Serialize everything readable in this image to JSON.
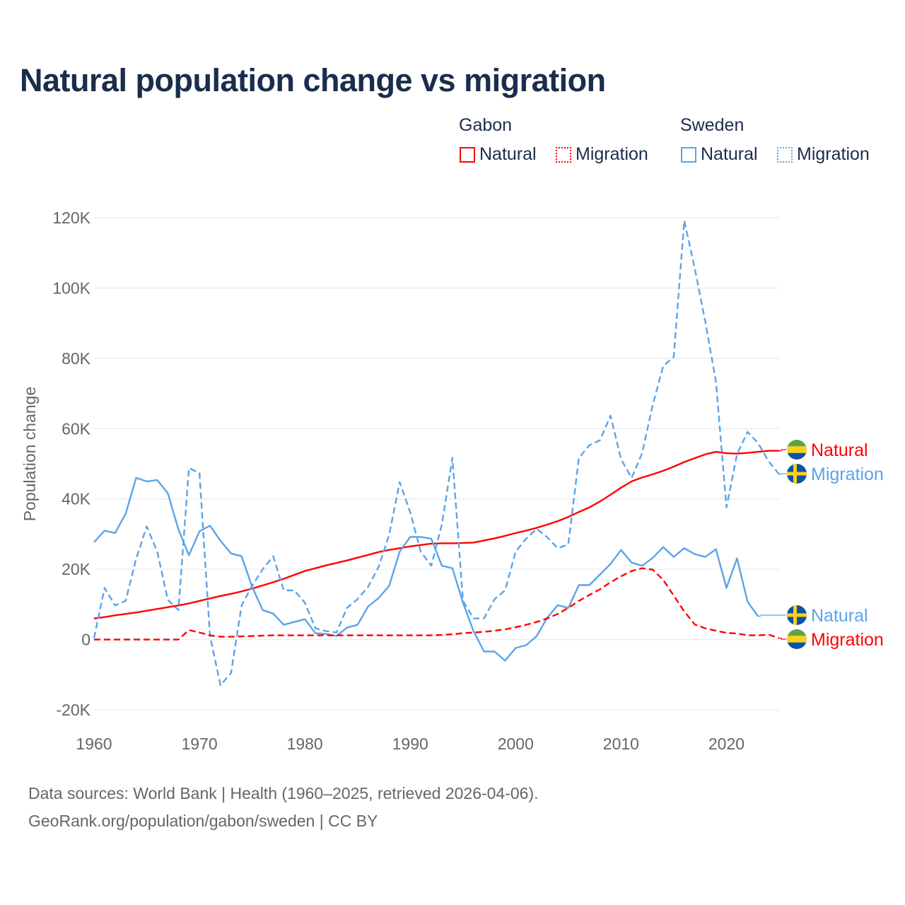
{
  "title": "Natural population change vs migration",
  "legend": {
    "groups": [
      {
        "name": "Gabon",
        "items": [
          {
            "label": "Natural",
            "style": "solid",
            "color": "#ff0000"
          },
          {
            "label": "Migration",
            "style": "dotted",
            "color": "#ff0000"
          }
        ]
      },
      {
        "name": "Sweden",
        "items": [
          {
            "label": "Natural",
            "style": "solid",
            "color": "#5ba4e8"
          },
          {
            "label": "Migration",
            "style": "dotted",
            "color": "#5ba4e8"
          }
        ]
      }
    ]
  },
  "footer": {
    "line1": "Data sources: World Bank | Health (1960–2025, retrieved 2026-04-06).",
    "line2": "GeoRank.org/population/gabon/sweden | CC BY"
  },
  "chart_data": {
    "type": "line",
    "title": "Natural population change vs migration",
    "xlabel": "",
    "ylabel": "Population change",
    "xlim": [
      1960,
      2025
    ],
    "ylim": [
      -20000,
      120000
    ],
    "xticks": [
      1960,
      1970,
      1980,
      1990,
      2000,
      2010,
      2020
    ],
    "xtick_labels": [
      "1960",
      "1970",
      "1980",
      "1990",
      "2000",
      "2010",
      "2020"
    ],
    "yticks": [
      -20000,
      0,
      20000,
      40000,
      60000,
      80000,
      100000,
      120000
    ],
    "ytick_labels": [
      "-20K",
      "0",
      "20K",
      "40K",
      "60K",
      "80K",
      "100K",
      "120K"
    ],
    "grid": true,
    "legend_position": "top-right",
    "x_start": 1960,
    "series": [
      {
        "name": "Gabon Natural",
        "country": "Gabon",
        "end_label": "Natural",
        "color": "#ff0000",
        "dash": false,
        "values": [
          6000,
          6400,
          6900,
          7300,
          7700,
          8200,
          8700,
          9200,
          9700,
          10300,
          11000,
          11700,
          12400,
          13000,
          13700,
          14500,
          15400,
          16300,
          17300,
          18400,
          19500,
          20300,
          21100,
          21800,
          22500,
          23300,
          24100,
          24900,
          25500,
          26000,
          26500,
          26900,
          27300,
          27400,
          27400,
          27500,
          27600,
          28200,
          28800,
          29500,
          30300,
          31000,
          31800,
          32700,
          33700,
          34900,
          36300,
          37600,
          39300,
          41200,
          43200,
          45000,
          46100,
          47000,
          48000,
          49200,
          50500,
          51600,
          52700,
          53400,
          53000,
          52900,
          53100,
          53400,
          53700,
          53700
        ]
      },
      {
        "name": "Sweden Migration",
        "country": "Sweden",
        "end_label": "Migration",
        "color": "#5ba4e8",
        "dash": true,
        "values": [
          400,
          14700,
          9700,
          11000,
          23000,
          32200,
          25000,
          11300,
          8400,
          48800,
          47400,
          1000,
          -13000,
          -9500,
          9700,
          15300,
          20000,
          23700,
          14000,
          14000,
          10500,
          3200,
          2400,
          2000,
          9000,
          11500,
          15000,
          20700,
          29800,
          44800,
          36200,
          25000,
          21000,
          32800,
          51700,
          11000,
          6000,
          6000,
          11500,
          14000,
          25000,
          28700,
          31500,
          29100,
          26000,
          27100,
          51700,
          55300,
          56700,
          63700,
          51300,
          46000,
          53000,
          66700,
          77800,
          80400,
          119200,
          105500,
          90400,
          73400,
          37600,
          52700,
          59100,
          55900,
          50700,
          47000
        ]
      },
      {
        "name": "Sweden Natural",
        "country": "Sweden",
        "end_label": "Natural",
        "color": "#5ba4e8",
        "dash": false,
        "values": [
          27700,
          31000,
          30300,
          35800,
          46000,
          45000,
          45400,
          41600,
          31400,
          24000,
          30800,
          32400,
          28100,
          24500,
          23700,
          15000,
          8400,
          7400,
          4200,
          5000,
          5800,
          1800,
          1600,
          1000,
          3400,
          4200,
          9400,
          11800,
          15300,
          25000,
          29200,
          29200,
          28700,
          21000,
          20300,
          10500,
          2400,
          -3400,
          -3400,
          -6000,
          -2400,
          -1600,
          1000,
          6200,
          9800,
          9000,
          15500,
          15500,
          18500,
          21500,
          25500,
          21900,
          21000,
          23200,
          26300,
          23500,
          26000,
          24300,
          23500,
          25700,
          14700,
          23100,
          10800,
          6600
        ]
      },
      {
        "name": "Gabon Migration",
        "country": "Gabon",
        "end_label": "Migration",
        "color": "#ff0000",
        "dash": true,
        "values": [
          0,
          0,
          0,
          0,
          0,
          0,
          0,
          0,
          0,
          2700,
          2000,
          1200,
          800,
          800,
          900,
          1000,
          1100,
          1200,
          1200,
          1200,
          1200,
          1200,
          1200,
          1200,
          1200,
          1200,
          1200,
          1200,
          1200,
          1200,
          1200,
          1200,
          1200,
          1300,
          1500,
          1800,
          2000,
          2200,
          2500,
          2900,
          3500,
          4200,
          5000,
          6000,
          7300,
          9000,
          11000,
          12700,
          14300,
          16300,
          18000,
          19500,
          20300,
          19900,
          17000,
          12500,
          8000,
          4300,
          3200,
          2500,
          1900,
          1700,
          1200,
          1200,
          1400,
          400
        ]
      }
    ]
  }
}
